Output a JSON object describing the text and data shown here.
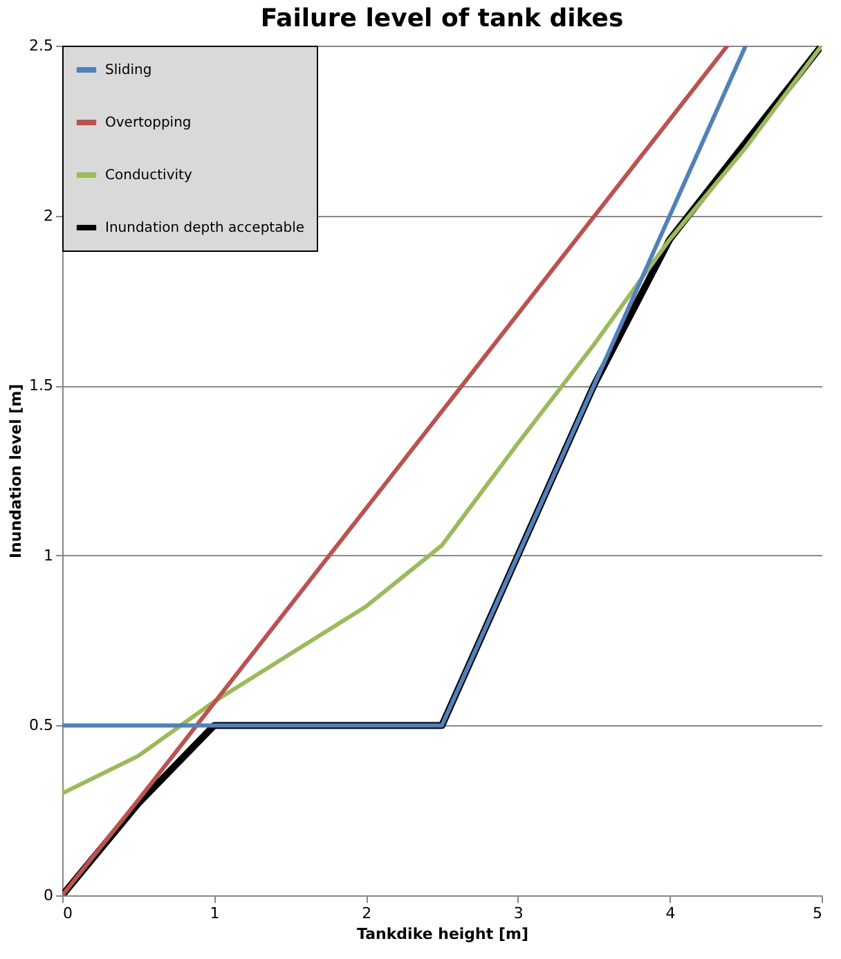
{
  "chart_data": {
    "type": "line",
    "title": "Failure level of tank dikes",
    "xlabel": "Tankdike height [m]",
    "ylabel": "Inundation level [m]",
    "xlim": [
      0,
      5
    ],
    "xticks": [
      0,
      1,
      2,
      3,
      4,
      5
    ],
    "ylim": [
      0,
      2.5
    ],
    "yticks": [
      0,
      0.5,
      1,
      1.5,
      2,
      2.5
    ],
    "grid": "y",
    "legend": "top left",
    "marker": "none",
    "line_style": "solid",
    "series": [
      {
        "name": "Sliding",
        "color": "#4f81bd",
        "x": [
          0,
          2.5,
          3,
          3.5,
          4,
          4.5
        ],
        "values": [
          0.5,
          0.5,
          1,
          1.5,
          2,
          2.5
        ]
      },
      {
        "name": "Overtopping",
        "color": "#c0504d",
        "x": [
          0,
          0.5,
          4.38
        ],
        "values": [
          0,
          0.28,
          2.5
        ]
      },
      {
        "name": "Conductivity",
        "color": "#9bbb59",
        "x": [
          0,
          0.5,
          1,
          2,
          2.5,
          3,
          3.5,
          4,
          4.5,
          5
        ],
        "values": [
          0.3,
          0.41,
          0.57,
          0.85,
          1.03,
          1.33,
          1.62,
          1.93,
          2.2,
          2.5
        ]
      },
      {
        "name": "Inundation depth acceptable",
        "color": "#000000",
        "x": [
          0,
          0.5,
          1,
          2.5,
          3,
          3.5,
          4,
          5
        ],
        "values": [
          0,
          0.27,
          0.5,
          0.5,
          1,
          1.5,
          1.93,
          2.5
        ]
      }
    ]
  }
}
